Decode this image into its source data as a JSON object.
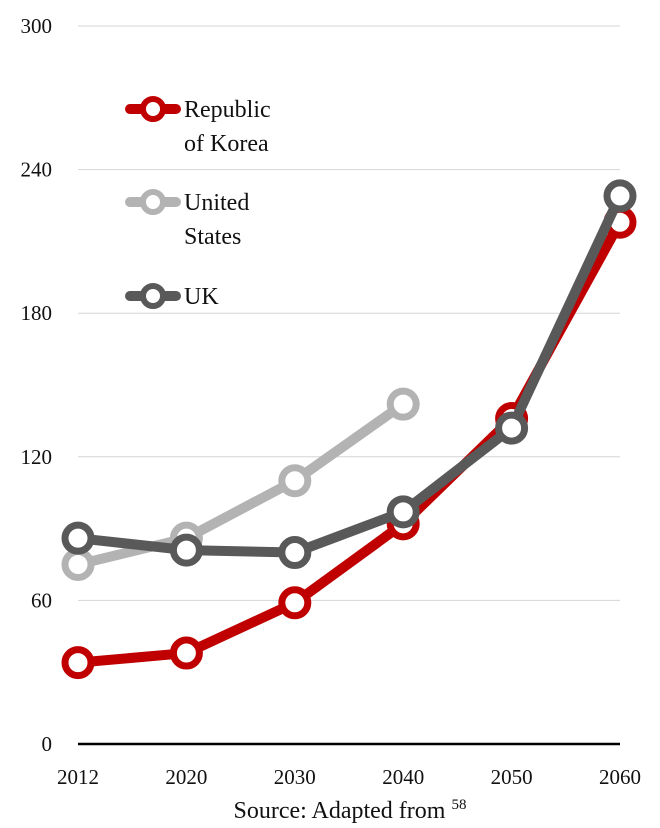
{
  "chart_data": {
    "type": "line",
    "x": [
      "2012",
      "2020",
      "2030",
      "2040",
      "2050",
      "2060"
    ],
    "ylim": [
      0,
      300
    ],
    "yticks": [
      "0",
      "60",
      "120",
      "180",
      "240",
      "300"
    ],
    "grid": true,
    "legend_position": "top-left",
    "series": [
      {
        "name": "Republic of Korea",
        "name_lines": [
          "Republic",
          "of Korea"
        ],
        "color": "#c00000",
        "values": [
          34,
          38,
          59,
          92,
          136,
          218
        ]
      },
      {
        "name": "United States",
        "name_lines": [
          "United",
          "States"
        ],
        "color": "#b3b3b3",
        "values": [
          75,
          86,
          110,
          142,
          null,
          null
        ]
      },
      {
        "name": "UK",
        "name_lines": [
          "UK"
        ],
        "color": "#595959",
        "values": [
          86,
          81,
          80,
          97,
          132,
          229
        ]
      }
    ],
    "source": {
      "text": "Source: Adapted from ",
      "ref": "58"
    }
  }
}
